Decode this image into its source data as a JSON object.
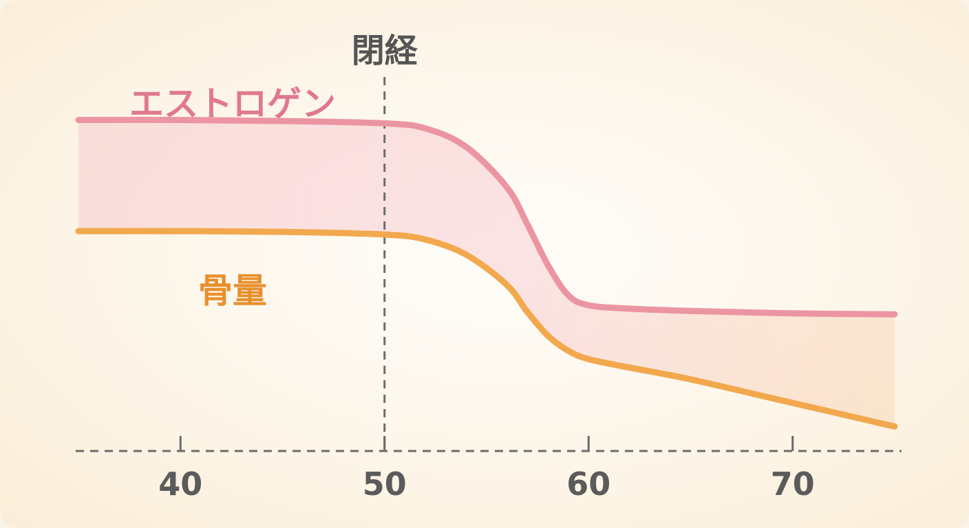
{
  "chart_data": {
    "type": "line",
    "x": [
      35,
      40,
      45,
      50,
      52,
      54,
      56,
      57,
      58,
      59,
      60,
      62,
      65,
      70,
      75
    ],
    "series": [
      {
        "name": "エストロゲン",
        "color": "#ec95a2",
        "values": [
          95,
          95,
          94.7,
          94,
          92.5,
          87,
          75,
          64,
          52,
          43,
          40,
          39,
          38.3,
          37.6,
          37.3
        ]
      },
      {
        "name": "骨量",
        "color": "#f2a84d",
        "values": [
          62,
          62,
          61.8,
          61,
          59.5,
          55,
          46,
          38,
          31,
          26.5,
          24,
          21.5,
          18,
          11,
          4
        ]
      }
    ],
    "xticks": [
      "40",
      "50",
      "60",
      "70"
    ],
    "xtick_values": [
      40,
      50,
      60,
      70
    ],
    "marker": {
      "x": 50,
      "label": "閉経"
    },
    "band_fill": "#f4b9c3",
    "axis_color": "#6b6b6b",
    "xlim": [
      35,
      75
    ],
    "ylim": [
      0,
      100
    ],
    "grid": false,
    "title": "",
    "xlabel": "",
    "ylabel": ""
  }
}
